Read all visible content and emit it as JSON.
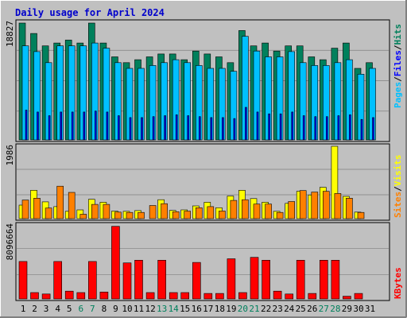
{
  "title": "Daily usage for April 2024",
  "colors": {
    "background": "#c0c0c0",
    "panel": "#c0c0c0",
    "title": "#0000cc",
    "hits": "#00805c",
    "files": "#00c0ff",
    "pages": "#0000ff",
    "visits": "#ffff00",
    "sites": "#ff8000",
    "kbytes": "#ff0000",
    "weekend_label": "#00805c",
    "weekday_label": "#000000"
  },
  "chart_data": [
    {
      "type": "bar",
      "name": "hits-files-pages",
      "y_max_label": "18827",
      "ymax": 18827,
      "ylim": [
        0,
        18827
      ],
      "legend": {
        "pages": "Pages",
        "files": "Files",
        "hits": "Hits",
        "sep": "/"
      },
      "categories": [
        "1",
        "2",
        "3",
        "4",
        "5",
        "6",
        "7",
        "8",
        "9",
        "10",
        "11",
        "12",
        "13",
        "14",
        "15",
        "16",
        "17",
        "18",
        "19",
        "20",
        "21",
        "22",
        "23",
        "24",
        "25",
        "26",
        "27",
        "28",
        "29",
        "30",
        "31"
      ],
      "series": [
        {
          "name": "Hits",
          "values": [
            18827,
            17155,
            15150,
            15612,
            16080,
            15613,
            18827,
            15612,
            13385,
            12455,
            12919,
            13385,
            13850,
            13850,
            12919,
            14315,
            13850,
            13385,
            12455,
            17621,
            15150,
            15612,
            14315,
            15150,
            15150,
            13385,
            12919,
            14780,
            15612,
            11522,
            12455
          ]
        },
        {
          "name": "Files",
          "values": [
            15150,
            14235,
            12455,
            15150,
            15150,
            15150,
            15612,
            14780,
            12455,
            11522,
            11522,
            11988,
            12455,
            12919,
            12455,
            11988,
            11522,
            11522,
            11055,
            16688,
            14315,
            13385,
            13385,
            14235,
            12455,
            11988,
            11988,
            12455,
            12919,
            10590,
            11522
          ]
        },
        {
          "name": "Pages",
          "values": [
            4800,
            4500,
            3900,
            4500,
            4500,
            4500,
            4650,
            4500,
            3900,
            3600,
            3600,
            3750,
            3900,
            4050,
            3900,
            3750,
            3600,
            3600,
            3450,
            5250,
            4500,
            4200,
            4200,
            4500,
            3900,
            3750,
            3750,
            3900,
            4050,
            3300,
            3600
          ]
        }
      ]
    },
    {
      "type": "bar",
      "name": "visits-sites",
      "y_max_label": "1986",
      "ymax": 1986,
      "ylim": [
        0,
        1986
      ],
      "legend": {
        "sites": "Sites",
        "visits": "Visits",
        "sep": "/"
      },
      "series": [
        {
          "name": "Visits",
          "values": [
            370,
            780,
            460,
            330,
            200,
            240,
            530,
            450,
            205,
            200,
            220,
            0,
            520,
            225,
            240,
            350,
            450,
            300,
            620,
            780,
            550,
            450,
            200,
            420,
            750,
            650,
            860,
            1986,
            610,
            180,
            0
          ]
        },
        {
          "name": "Sites",
          "values": [
            510,
            560,
            290,
            890,
            720,
            120,
            390,
            390,
            180,
            170,
            170,
            360,
            410,
            190,
            205,
            300,
            330,
            210,
            500,
            520,
            400,
            400,
            170,
            470,
            770,
            730,
            750,
            690,
            560,
            170,
            0
          ]
        }
      ]
    },
    {
      "type": "bar",
      "name": "kbytes",
      "y_max_label": "8096664",
      "ymax": 8096664,
      "ylim": [
        0,
        8096664
      ],
      "legend": {
        "kbytes": "KBytes"
      },
      "series": [
        {
          "name": "KBytes",
          "values": [
            4100000,
            700000,
            540000,
            4100000,
            850000,
            700000,
            4100000,
            760000,
            7950000,
            3940000,
            4240000,
            700000,
            4240000,
            700000,
            700000,
            4000000,
            600000,
            600000,
            4400000,
            700000,
            4550000,
            4240000,
            850000,
            540000,
            4240000,
            600000,
            4240000,
            4240000,
            300000,
            600000,
            0
          ]
        }
      ]
    }
  ],
  "x_labels": [
    "1",
    "2",
    "3",
    "4",
    "5",
    "6",
    "7",
    "8",
    "9",
    "10",
    "11",
    "12",
    "13",
    "14",
    "15",
    "16",
    "17",
    "18",
    "19",
    "20",
    "21",
    "22",
    "23",
    "24",
    "25",
    "26",
    "27",
    "28",
    "29",
    "30",
    "31"
  ],
  "weekend_days": [
    6,
    7,
    13,
    14,
    20,
    21,
    27,
    28
  ]
}
